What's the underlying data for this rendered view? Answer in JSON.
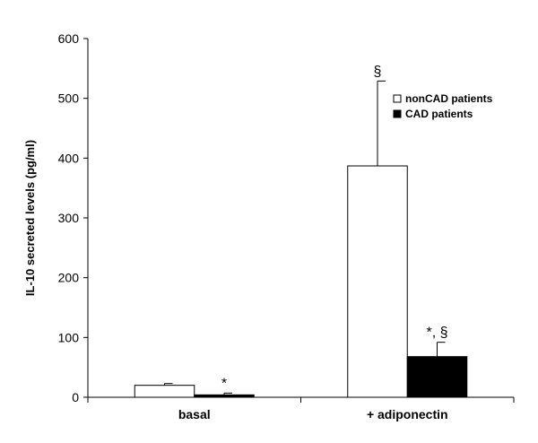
{
  "chart_data": {
    "type": "bar",
    "ylabel": "IL-10 secreted levels (pg/ml)",
    "ylim": [
      0,
      600
    ],
    "yticks": [
      0,
      100,
      200,
      300,
      400,
      500,
      600
    ],
    "categories": [
      "basal",
      "+ adiponectin"
    ],
    "series": [
      {
        "name": "nonCAD patients",
        "color": "#ffffff",
        "values": [
          20,
          387
        ],
        "errors": [
          3,
          142
        ]
      },
      {
        "name": "CAD patients",
        "color": "#000000",
        "values": [
          4,
          68
        ],
        "errors": [
          3,
          24
        ]
      }
    ],
    "annotations": [
      {
        "category": 0,
        "series": 1,
        "text": "*"
      },
      {
        "category": 1,
        "series": 1,
        "text": "*, §"
      },
      {
        "category": 1,
        "series": 0,
        "text": "§"
      }
    ],
    "legend": {
      "placement": "top-right"
    },
    "grid": false
  }
}
